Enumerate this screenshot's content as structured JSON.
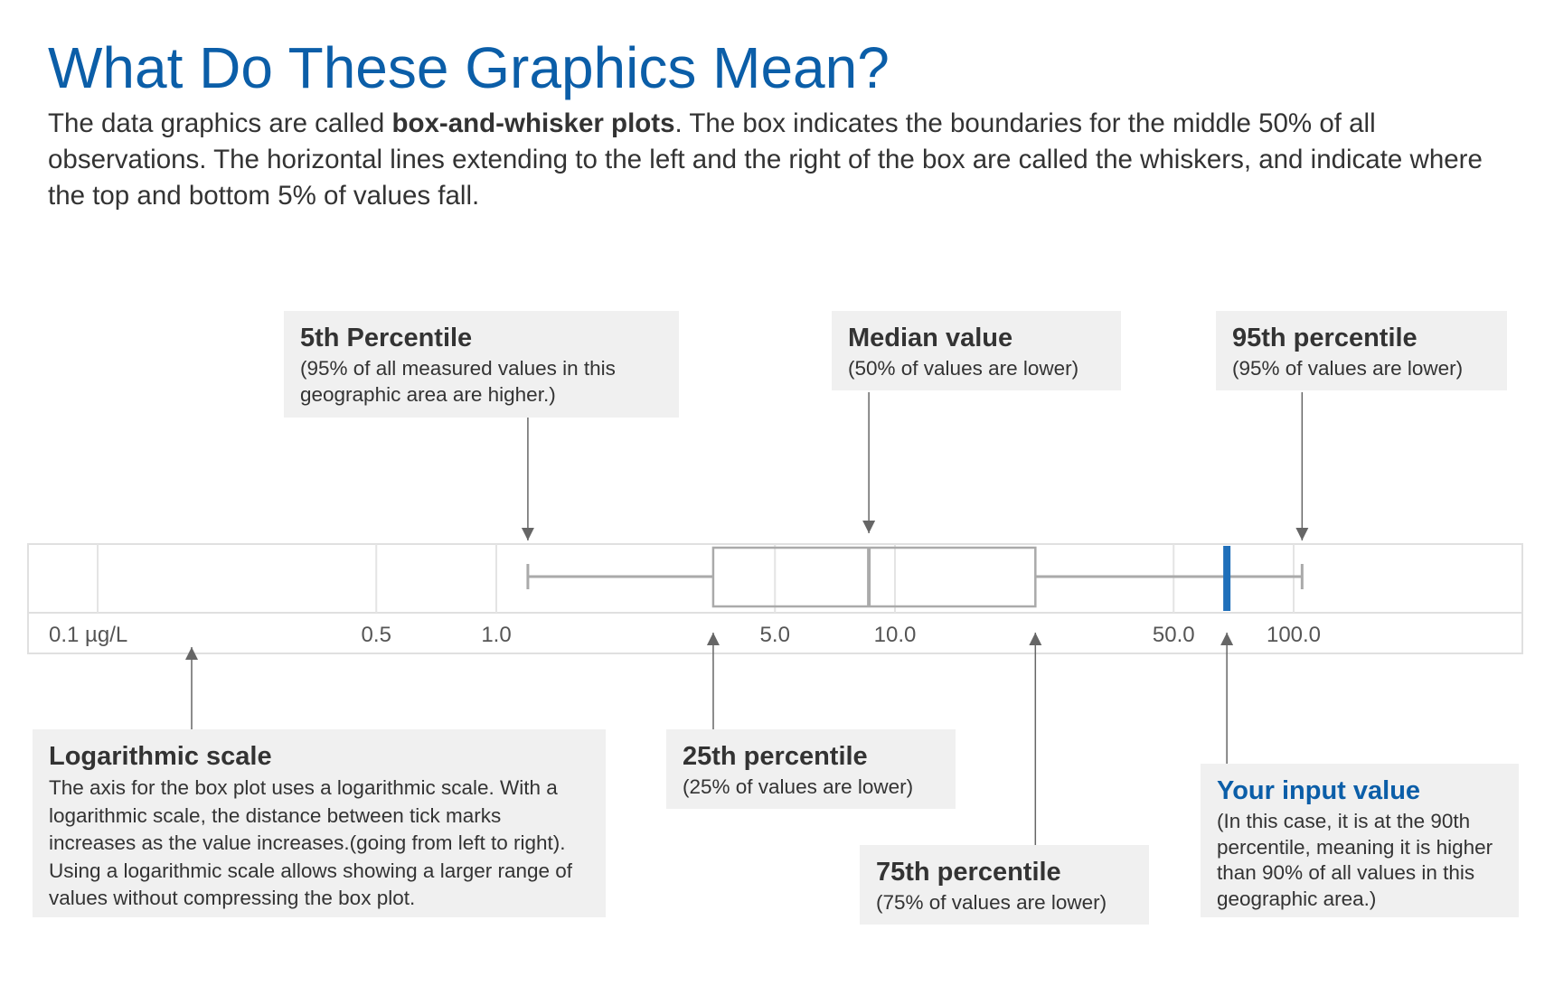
{
  "title": "What Do These Graphics Mean?",
  "intro": {
    "before": "The data graphics are called ",
    "bold": "box-and-whisker plots",
    "after": ". The box indicates the boundaries for the middle 50% of all observations. The horizontal lines extending to the left and the right of the box are called the whiskers, and indicate where the top and bottom 5% of values fall."
  },
  "chart_data": {
    "type": "box",
    "scale": "log",
    "unit": "µg/L",
    "xlim": [
      0.07,
      500
    ],
    "ticks": [
      {
        "value": 0.1,
        "label": "0.1 µg/L"
      },
      {
        "value": 0.5,
        "label": "0.5"
      },
      {
        "value": 1.0,
        "label": "1.0"
      },
      {
        "value": 5.0,
        "label": "5.0"
      },
      {
        "value": 10.0,
        "label": "10.0"
      },
      {
        "value": 50.0,
        "label": "50.0"
      },
      {
        "value": 100.0,
        "label": "100.0"
      }
    ],
    "box": {
      "p5": 1.2,
      "p25": 3.5,
      "median": 8.6,
      "p75": 22.5,
      "p95": 105
    },
    "input_value": 68,
    "colors": {
      "box": "#aaaaaa",
      "grid": "#e4e4e4",
      "input": "#1f6fba",
      "arrow": "#666666",
      "axis_text": "#555555"
    }
  },
  "callouts": {
    "p5": {
      "title": "5th Percentile",
      "desc": "(95% of all measured values in this geographic area are higher.)"
    },
    "median": {
      "title": "Median value",
      "desc": "(50% of values are lower)"
    },
    "p95": {
      "title": "95th percentile",
      "desc": "(95% of values are lower)"
    },
    "log": {
      "title": "Logarithmic scale",
      "desc": "The axis for the box plot uses a logarithmic scale. With a logarithmic scale, the distance between tick marks increases as the value increases.(going from left to right). Using a logarithmic scale allows showing a larger range of values without compressing the box plot."
    },
    "p25": {
      "title": "25th percentile",
      "desc": "(25% of values are lower)"
    },
    "p75": {
      "title": "75th percentile",
      "desc": "(75% of values are lower)"
    },
    "input": {
      "title": "Your input value",
      "desc": "(In this case, it is at the 90th percentile, meaning it is higher than 90% of all values in this geographic area.)"
    }
  }
}
